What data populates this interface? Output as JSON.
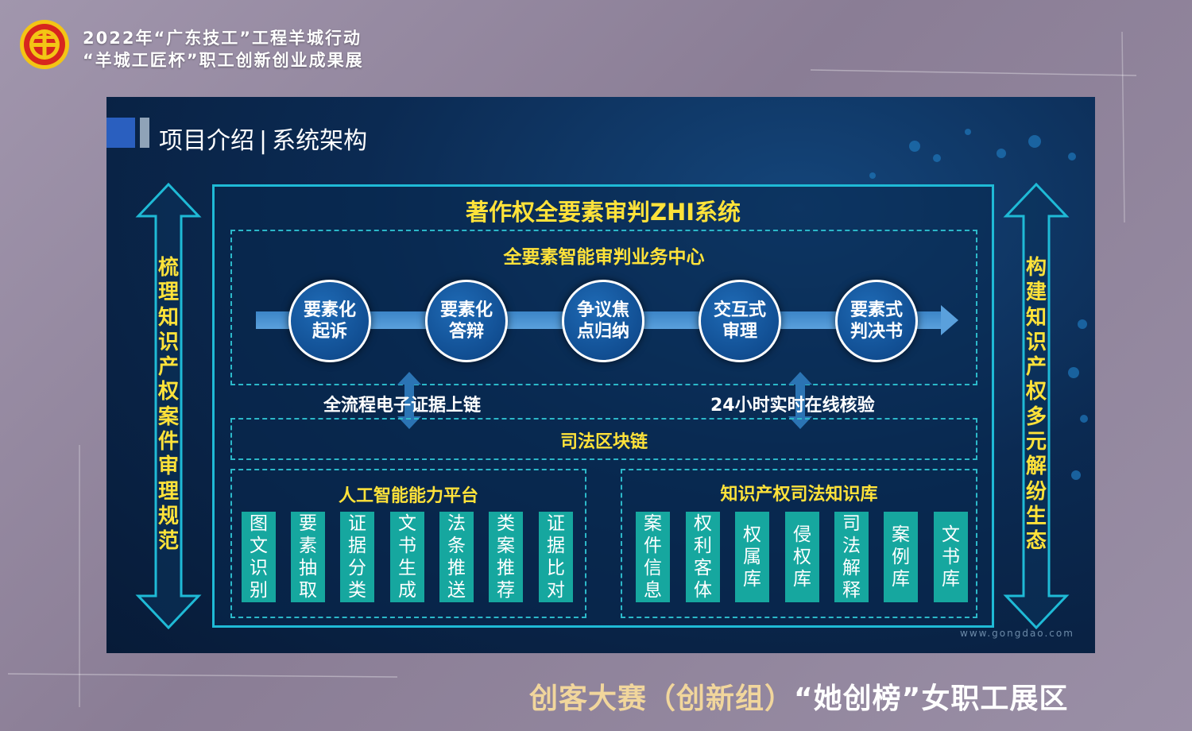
{
  "header": {
    "line1": "2022年“广东技工”工程羊城行动",
    "line2": "“羊城工匠杯”职工创新创业成果展"
  },
  "slide": {
    "page_title": "项目介绍",
    "page_title_sep": "|",
    "page_subtitle": "系统架构",
    "system_title": "著作权全要素审判ZHI系统",
    "business_center": "全要素智能审判业务中心",
    "process_steps": [
      "要素化起诉",
      "要素化答辩",
      "争议焦点归纳",
      "交互式审理",
      "要素式判决书"
    ],
    "evidence_chain": "全流程电子证据上链",
    "online_verify": "24小时实时在线核验",
    "blockchain": "司法区块链",
    "ai_platform": {
      "title": "人工智能能力平台",
      "items": [
        "图文识别",
        "要素抽取",
        "证据分类",
        "文书生成",
        "法条推送",
        "类案推荐",
        "证据比对"
      ]
    },
    "knowledge_base": {
      "title": "知识产权司法知识库",
      "items": [
        "案件信息",
        "权利客体",
        "权属库",
        "侵权库",
        "司法解释",
        "案例库",
        "文书库"
      ]
    },
    "left_vertical": "梳理知识产权案件审理规范",
    "right_vertical": "构建知识产权多元解纷生态",
    "watermark": "www.gongdao.com"
  },
  "footer": {
    "part1": "创客大赛（创新组）",
    "part2": "“她创榜”女职工展区"
  },
  "colors": {
    "accent_yellow": "#ffe23a",
    "frame_cyan": "#1fbad6",
    "tile_teal": "#16a79f",
    "slide_navy": "#0b2a52",
    "page_bg": "#8c7f97"
  }
}
